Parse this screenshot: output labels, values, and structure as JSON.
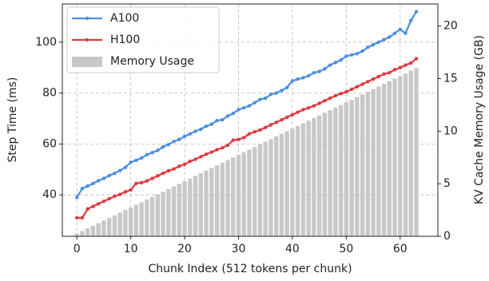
{
  "chart_data": {
    "type": "line",
    "xlabel": "Chunk Index (512 tokens per chunk)",
    "ylabel": "Step Time (ms)",
    "y2label": "KV Cache Memory Usage (GB)",
    "x": [
      0,
      1,
      2,
      3,
      4,
      5,
      6,
      7,
      8,
      9,
      10,
      11,
      12,
      13,
      14,
      15,
      16,
      17,
      18,
      19,
      20,
      21,
      22,
      23,
      24,
      25,
      26,
      27,
      28,
      29,
      30,
      31,
      32,
      33,
      34,
      35,
      36,
      37,
      38,
      39,
      40,
      41,
      42,
      43,
      44,
      45,
      46,
      47,
      48,
      49,
      50,
      51,
      52,
      53,
      54,
      55,
      56,
      57,
      58,
      59,
      60,
      61,
      62,
      63
    ],
    "series": [
      {
        "name": "A100",
        "type": "line",
        "color": "#4a8fe0",
        "values": [
          39.0,
          42.5,
          43.5,
          44.5,
          45.6,
          46.5,
          47.6,
          48.5,
          49.6,
          50.8,
          52.8,
          53.6,
          54.5,
          55.8,
          56.6,
          57.5,
          58.9,
          59.8,
          61.0,
          61.8,
          63.0,
          64.0,
          65.0,
          65.8,
          67.0,
          67.8,
          69.2,
          69.5,
          71.0,
          72.0,
          73.5,
          74.2,
          75.0,
          76.2,
          77.5,
          78.0,
          79.5,
          80.0,
          81.0,
          82.2,
          84.8,
          85.5,
          86.0,
          86.8,
          88.0,
          88.5,
          89.5,
          91.0,
          92.0,
          93.0,
          94.5,
          95.0,
          95.5,
          96.5,
          98.0,
          99.0,
          100.0,
          101.0,
          102.0,
          103.5,
          105.0,
          103.5,
          108.5,
          112.0
        ]
      },
      {
        "name": "H100",
        "type": "line",
        "color": "#e0393f",
        "values": [
          31.0,
          31.0,
          34.5,
          35.5,
          36.5,
          37.5,
          38.5,
          39.5,
          40.2,
          41.2,
          42.0,
          44.5,
          44.8,
          45.5,
          46.5,
          47.5,
          48.5,
          49.5,
          50.2,
          51.3,
          52.0,
          53.2,
          54.0,
          55.0,
          56.0,
          56.8,
          57.8,
          58.5,
          59.5,
          61.5,
          61.8,
          62.5,
          64.0,
          64.8,
          65.5,
          66.5,
          67.5,
          68.5,
          69.5,
          70.5,
          71.5,
          72.5,
          73.5,
          74.2,
          75.0,
          76.0,
          77.0,
          78.0,
          79.0,
          79.8,
          80.5,
          81.5,
          82.5,
          83.5,
          84.5,
          85.5,
          86.5,
          87.5,
          88.0,
          89.2,
          90.0,
          91.0,
          91.8,
          93.5
        ]
      },
      {
        "name": "Memory Usage",
        "type": "bar",
        "axis": "y2",
        "color": "#c8c8c8",
        "values": [
          0.25,
          0.5,
          0.75,
          1.0,
          1.25,
          1.5,
          1.75,
          2.0,
          2.25,
          2.5,
          2.75,
          3.0,
          3.25,
          3.5,
          3.75,
          4.0,
          4.25,
          4.5,
          4.75,
          5.0,
          5.25,
          5.5,
          5.75,
          6.0,
          6.25,
          6.5,
          6.75,
          7.0,
          7.25,
          7.5,
          7.75,
          8.0,
          8.25,
          8.5,
          8.75,
          9.0,
          9.25,
          9.5,
          9.75,
          10.0,
          10.25,
          10.5,
          10.75,
          11.0,
          11.25,
          11.5,
          11.75,
          12.0,
          12.25,
          12.5,
          12.75,
          13.0,
          13.25,
          13.5,
          13.75,
          14.0,
          14.25,
          14.5,
          14.75,
          15.0,
          15.25,
          15.5,
          15.75,
          16.0
        ]
      }
    ],
    "xlim": [
      -2.7,
      67.0
    ],
    "xticks": [
      0,
      10,
      20,
      30,
      40,
      50,
      60
    ],
    "ylim": [
      23.75,
      115
    ],
    "yticks": [
      40,
      60,
      80,
      100
    ],
    "y2lim": [
      0,
      22.1
    ],
    "y2ticks": [
      0,
      5,
      10,
      15,
      20
    ],
    "grid": true,
    "legend": "upper-left"
  }
}
